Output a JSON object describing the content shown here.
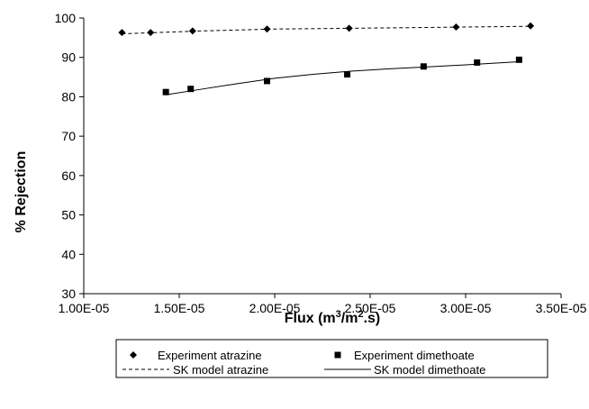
{
  "chart_data": {
    "type": "scatter",
    "xlabel_main": "Flux (m",
    "xlabel_sup1": "3",
    "xlabel_mid": "/m",
    "xlabel_sup2": "2",
    "xlabel_end": ".s)",
    "ylabel": "% Rejection",
    "xlim": [
      1e-05,
      3.5e-05
    ],
    "ylim": [
      30,
      100
    ],
    "xticks": [
      1e-05,
      1.5e-05,
      2e-05,
      2.5e-05,
      3e-05,
      3.5e-05
    ],
    "xtick_labels": [
      "1.00E-05",
      "1.50E-05",
      "2.00E-05",
      "2.50E-05",
      "3.00E-05",
      "3.50E-05"
    ],
    "yticks": [
      30,
      40,
      50,
      60,
      70,
      80,
      90,
      100
    ],
    "ytick_labels": [
      "30",
      "40",
      "50",
      "60",
      "70",
      "80",
      "90",
      "100"
    ],
    "grid": false,
    "legend_position": "bottom",
    "series": [
      {
        "name": "Experiment atrazine",
        "kind": "markers",
        "marker": "diamond",
        "x": [
          1.2e-05,
          1.35e-05,
          1.57e-05,
          1.96e-05,
          2.39e-05,
          2.95e-05,
          3.34e-05
        ],
        "y": [
          96.3,
          96.3,
          96.7,
          97.2,
          97.4,
          97.7,
          98.0
        ]
      },
      {
        "name": "Experiment dimethoate",
        "kind": "markers",
        "marker": "square",
        "x": [
          1.43e-05,
          1.56e-05,
          1.96e-05,
          2.38e-05,
          2.78e-05,
          3.06e-05,
          3.28e-05
        ],
        "y": [
          81.2,
          82.0,
          84.0,
          85.7,
          87.7,
          88.7,
          89.4
        ]
      },
      {
        "name": "SK model atrazine",
        "kind": "line",
        "dash": "dashed",
        "x": [
          1.2e-05,
          1.6e-05,
          2e-05,
          2.4e-05,
          2.8e-05,
          3.34e-05
        ],
        "y": [
          96.0,
          96.7,
          97.2,
          97.4,
          97.6,
          97.9
        ]
      },
      {
        "name": "SK model dimethoate",
        "kind": "line",
        "dash": "solid",
        "x": [
          1.43e-05,
          1.6e-05,
          1.8e-05,
          2e-05,
          2.2e-05,
          2.4e-05,
          2.6e-05,
          2.8e-05,
          3e-05,
          3.28e-05
        ],
        "y": [
          80.5,
          81.8,
          83.3,
          84.7,
          85.7,
          86.5,
          87.1,
          87.6,
          88.1,
          88.9
        ]
      }
    ]
  }
}
